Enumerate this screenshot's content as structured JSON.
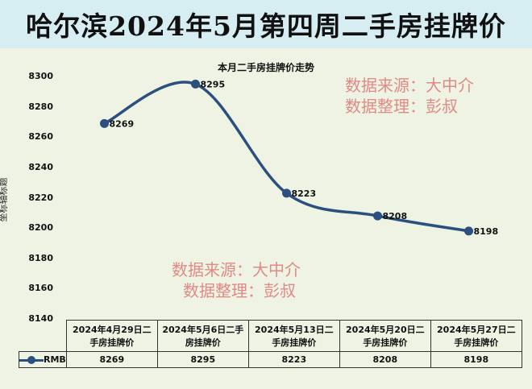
{
  "header": {
    "title": "哈尔滨2024年5月第四周二手房挂牌价"
  },
  "watermarks": [
    {
      "line1": "数据来源：大中介",
      "line2": "数据整理：彭叔"
    },
    {
      "line1": "数据来源：大中介",
      "line2": "数据整理：彭叔"
    }
  ],
  "colors": {
    "line": "#2b4f7e",
    "header_bg": "#d6eef2",
    "plot_bg": "#eef3e4",
    "watermark": "#e08a86"
  },
  "chart_data": {
    "type": "line",
    "title": "本月二手房挂牌价走势",
    "ylabel": "坐标轴标题",
    "xlabel": "",
    "ylim": [
      8140,
      8300
    ],
    "yticks": [
      8140,
      8160,
      8180,
      8200,
      8220,
      8240,
      8260,
      8280,
      8300
    ],
    "categories": [
      "2024年4月29日二手房挂牌价",
      "2024年5月6日二手房挂牌价",
      "2024年5月13日二手房挂牌价",
      "2024年5月20日二手房挂牌价",
      "2024年5月27日二手房挂牌价"
    ],
    "category_lines": [
      [
        "2024年4月29日二",
        "手房挂牌价"
      ],
      [
        "2024年5月6日二手",
        "房挂牌价"
      ],
      [
        "2024年5月13日二",
        "手房挂牌价"
      ],
      [
        "2024年5月20日二",
        "手房挂牌价"
      ],
      [
        "2024年5月27日二",
        "手房挂牌价"
      ]
    ],
    "series": [
      {
        "name": "RMB",
        "values": [
          8269,
          8295,
          8223,
          8208,
          8198
        ]
      }
    ],
    "grid": false,
    "legend": "data-table"
  }
}
